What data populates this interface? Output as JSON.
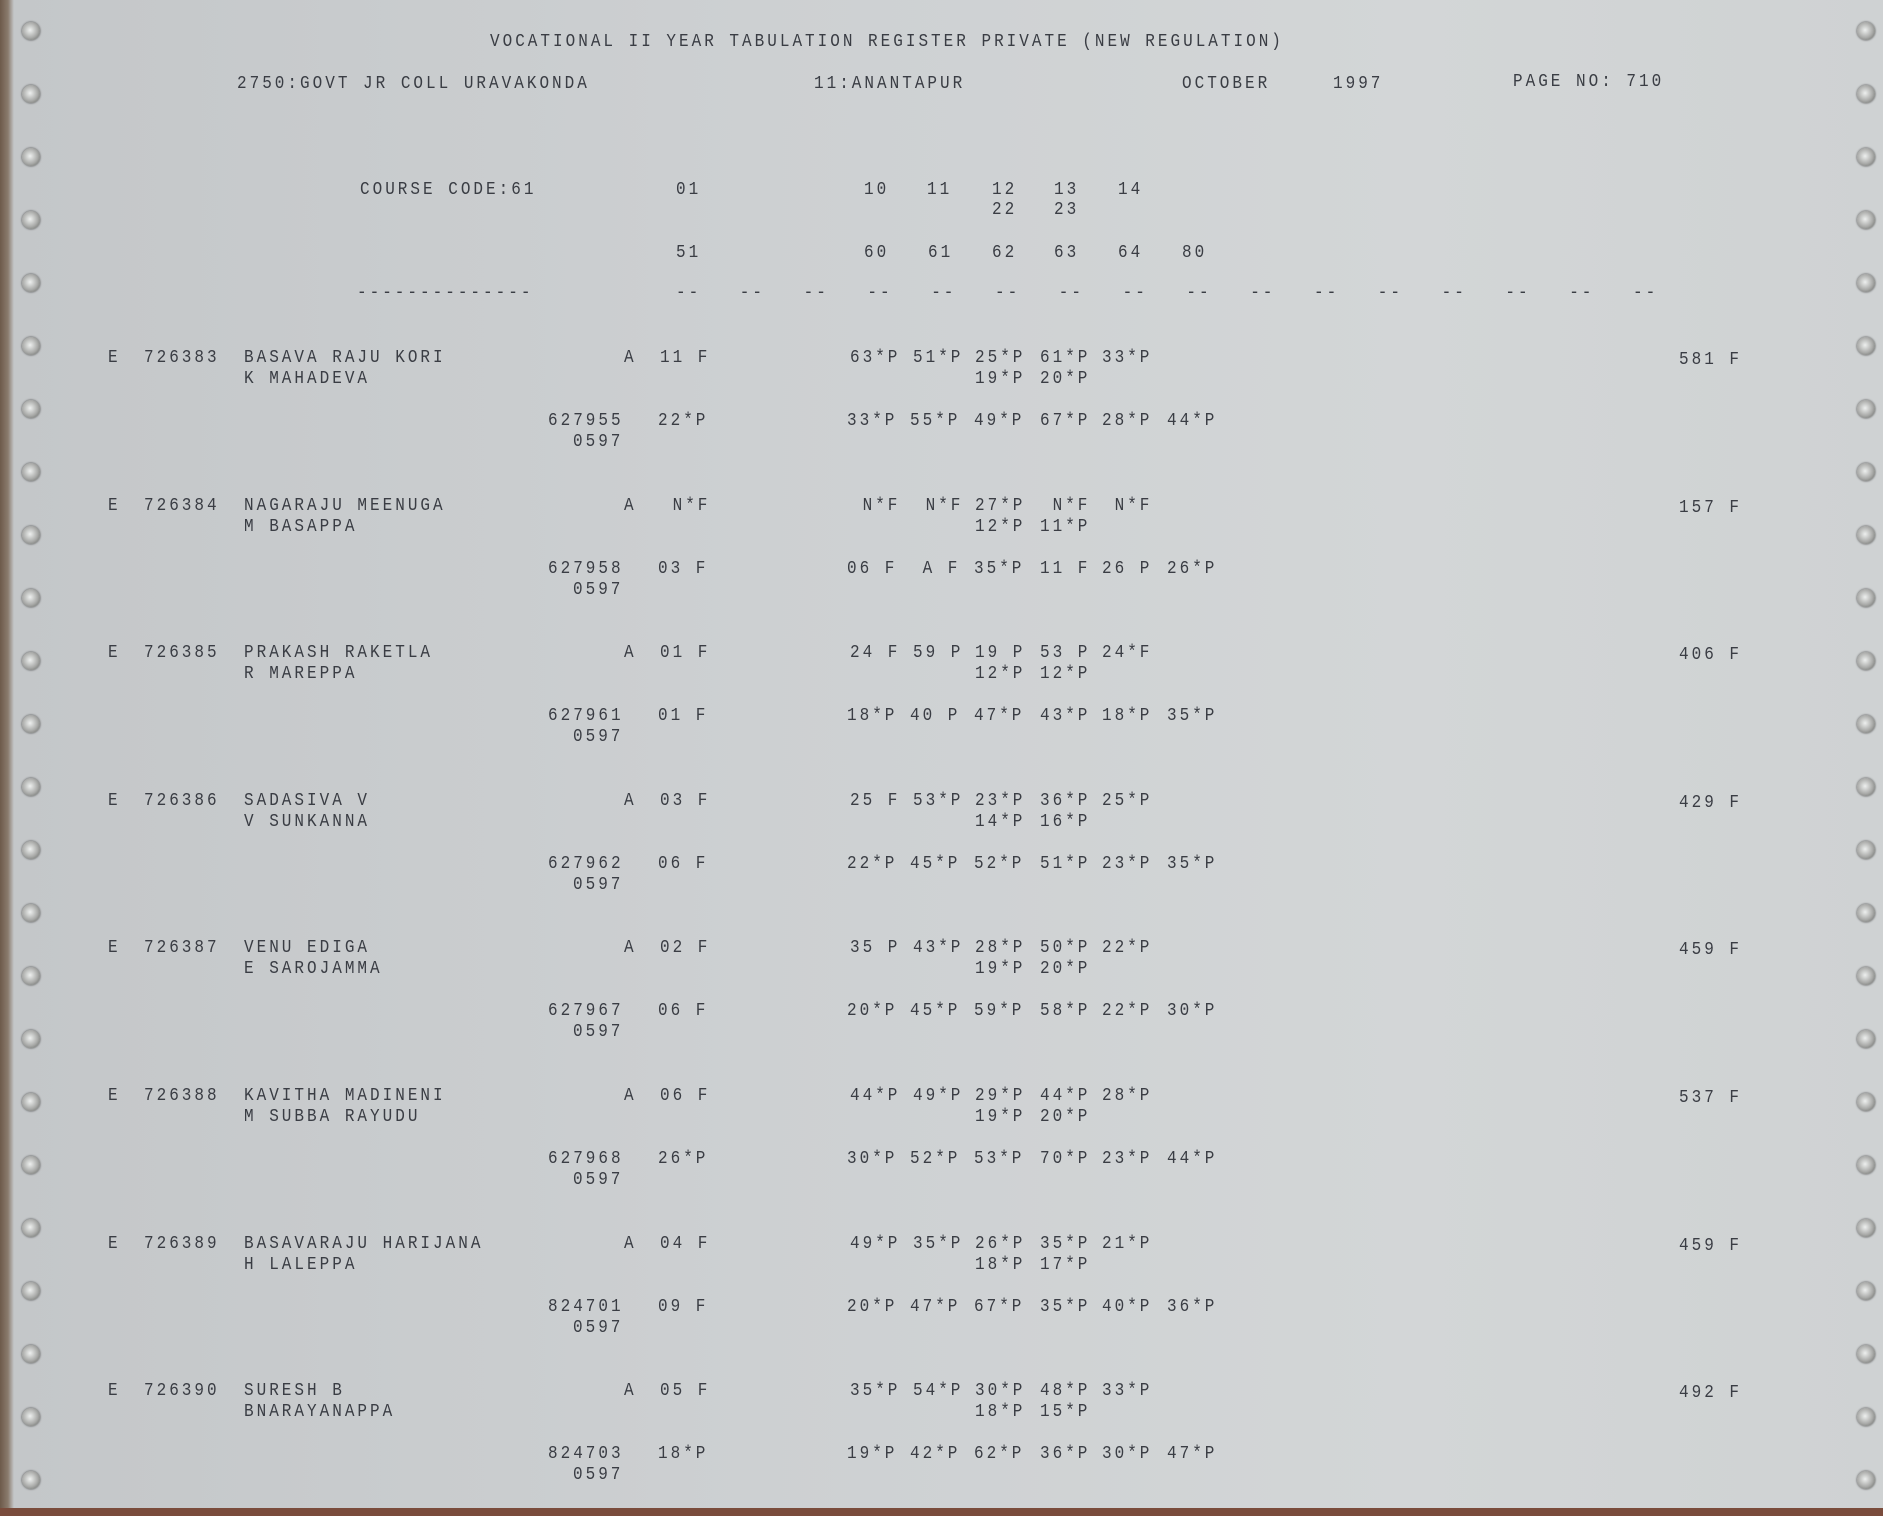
{
  "header": {
    "title": "VOCATIONAL II YEAR TABULATION REGISTER PRIVATE (NEW REGULATION)",
    "college": "2750:GOVT JR COLL URAVAKONDA",
    "district": "11:ANANTAPUR",
    "month": "OCTOBER",
    "year": "1997",
    "page": "PAGE NO: 710"
  },
  "columns": {
    "course_code": "COURSE CODE:61",
    "row1": [
      "01",
      "10",
      "11",
      "12",
      "13",
      "14"
    ],
    "row1b": [
      "22",
      "23"
    ],
    "row2": [
      "51",
      "60",
      "61",
      "62",
      "63",
      "64",
      "80"
    ],
    "long_dash": "--------------",
    "dash": "--",
    "dash_count": 16
  },
  "records": [
    {
      "type": "E",
      "id": "726383",
      "name": "BASAVA RAJU KORI",
      "parent": "K MAHADEVA",
      "part": "A",
      "part_val": "11 F",
      "marks1": [
        "63*P",
        "51*P",
        "25*P",
        "61*P",
        "33*P"
      ],
      "marks1b": [
        "19*P",
        "20*P"
      ],
      "reg": "627955",
      "reg2": "0597",
      "sub_val": "22*P",
      "marks2": [
        "33*P",
        "55*P",
        "49*P",
        "67*P",
        "28*P",
        "44*P"
      ],
      "total": "581 F"
    },
    {
      "type": "E",
      "id": "726384",
      "name": "NAGARAJU MEENUGA",
      "parent": "M BASAPPA",
      "part": "A",
      "part_val": " N*F",
      "marks1": [
        " N*F",
        " N*F",
        "27*P",
        " N*F",
        " N*F"
      ],
      "marks1b": [
        "12*P",
        "11*P"
      ],
      "reg": "627958",
      "reg2": "0597",
      "sub_val": "03 F",
      "marks2": [
        "06 F",
        " A F",
        "35*P",
        "11 F",
        "26 P",
        "26*P"
      ],
      "total": "157 F"
    },
    {
      "type": "E",
      "id": "726385",
      "name": "PRAKASH RAKETLA",
      "parent": "R MAREPPA",
      "part": "A",
      "part_val": "01 F",
      "marks1": [
        "24 F",
        "59 P",
        "19 P",
        "53 P",
        "24*F"
      ],
      "marks1b": [
        "12*P",
        "12*P"
      ],
      "reg": "627961",
      "reg2": "0597",
      "sub_val": "01 F",
      "marks2": [
        "18*P",
        "40 P",
        "47*P",
        "43*P",
        "18*P",
        "35*P"
      ],
      "total": "406 F"
    },
    {
      "type": "E",
      "id": "726386",
      "name": "SADASIVA V",
      "parent": "V SUNKANNA",
      "part": "A",
      "part_val": "03 F",
      "marks1": [
        "25 F",
        "53*P",
        "23*P",
        "36*P",
        "25*P"
      ],
      "marks1b": [
        "14*P",
        "16*P"
      ],
      "reg": "627962",
      "reg2": "0597",
      "sub_val": "06 F",
      "marks2": [
        "22*P",
        "45*P",
        "52*P",
        "51*P",
        "23*P",
        "35*P"
      ],
      "total": "429 F"
    },
    {
      "type": "E",
      "id": "726387",
      "name": "VENU EDIGA",
      "parent": "E SAROJAMMA",
      "part": "A",
      "part_val": "02 F",
      "marks1": [
        "35 P",
        "43*P",
        "28*P",
        "50*P",
        "22*P"
      ],
      "marks1b": [
        "19*P",
        "20*P"
      ],
      "reg": "627967",
      "reg2": "0597",
      "sub_val": "06 F",
      "marks2": [
        "20*P",
        "45*P",
        "59*P",
        "58*P",
        "22*P",
        "30*P"
      ],
      "total": "459 F"
    },
    {
      "type": "E",
      "id": "726388",
      "name": "KAVITHA MADINENI",
      "parent": "M SUBBA RAYUDU",
      "part": "A",
      "part_val": "06 F",
      "marks1": [
        "44*P",
        "49*P",
        "29*P",
        "44*P",
        "28*P"
      ],
      "marks1b": [
        "19*P",
        "20*P"
      ],
      "reg": "627968",
      "reg2": "0597",
      "sub_val": "26*P",
      "marks2": [
        "30*P",
        "52*P",
        "53*P",
        "70*P",
        "23*P",
        "44*P"
      ],
      "total": "537 F"
    },
    {
      "type": "E",
      "id": "726389",
      "name": "BASAVARAJU HARIJANA",
      "parent": "H LALEPPA",
      "part": "A",
      "part_val": "04 F",
      "marks1": [
        "49*P",
        "35*P",
        "26*P",
        "35*P",
        "21*P"
      ],
      "marks1b": [
        "18*P",
        "17*P"
      ],
      "reg": "824701",
      "reg2": "0597",
      "sub_val": "09 F",
      "marks2": [
        "20*P",
        "47*P",
        "67*P",
        "35*P",
        "40*P",
        "36*P"
      ],
      "total": "459 F"
    },
    {
      "type": "E",
      "id": "726390",
      "name": "SURESH B",
      "parent": "BNARAYANAPPA",
      "part": "A",
      "part_val": "05 F",
      "marks1": [
        "35*P",
        "54*P",
        "30*P",
        "48*P",
        "33*P"
      ],
      "marks1b": [
        "18*P",
        "15*P"
      ],
      "reg": "824703",
      "reg2": "0597",
      "sub_val": "18*P",
      "marks2": [
        "19*P",
        "42*P",
        "62*P",
        "36*P",
        "30*P",
        "47*P"
      ],
      "total": "492 F"
    }
  ]
}
